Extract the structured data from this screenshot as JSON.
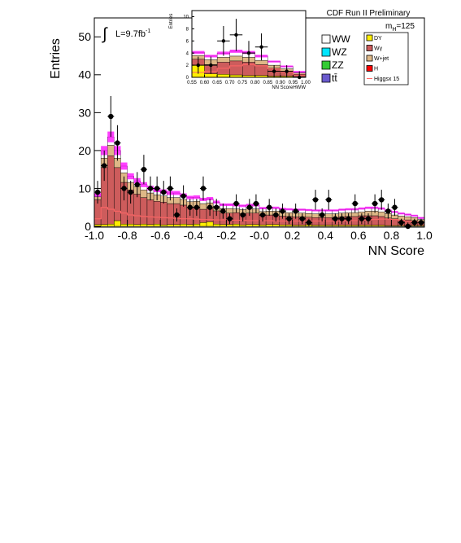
{
  "header": {
    "experiment": "CDF Run II Preliminary",
    "mass_label": "m",
    "mass_sub": "H",
    "mass_value": "=125",
    "lumi_prefix": "L=9.7fb",
    "lumi_sup": "-1"
  },
  "legend": {
    "left": [
      {
        "label": "WW",
        "color": "#ffffff"
      },
      {
        "label": "WZ",
        "color": "#00e5ff"
      },
      {
        "label": "ZZ",
        "color": "#33cc33"
      },
      {
        "label": "tt̄",
        "color": "#6a5acd"
      }
    ],
    "right": [
      {
        "label": "DY",
        "color": "#ffee00"
      },
      {
        "label": "Wγ",
        "color": "#cd5c5c"
      },
      {
        "label": "W+jet",
        "color": "#deb887"
      },
      {
        "label": "H",
        "color": "#ff0000"
      },
      {
        "label": "Higgsx 15",
        "color": "#ff6666"
      }
    ]
  },
  "chart_data": [
    {
      "type": "bar",
      "stacked": true,
      "xlabel": "NN Score",
      "ylabel": "Entries",
      "xlim": [
        -1.0,
        1.0
      ],
      "ylim": [
        0,
        55
      ],
      "xticks": [
        "-1.0",
        "-0.8",
        "-0.6",
        "-0.4",
        "-0.2",
        "-0.0",
        "0.2",
        "0.4",
        "0.6",
        "0.8",
        "1.0"
      ],
      "yticks": [
        "0",
        "10",
        "20",
        "30",
        "40",
        "50"
      ],
      "x_bins": [
        -0.98,
        -0.94,
        -0.9,
        -0.86,
        -0.82,
        -0.78,
        -0.74,
        -0.7,
        -0.66,
        -0.62,
        -0.58,
        -0.54,
        -0.5,
        -0.46,
        -0.42,
        -0.38,
        -0.34,
        -0.3,
        -0.26,
        -0.22,
        -0.18,
        -0.14,
        -0.1,
        -0.06,
        -0.02,
        0.02,
        0.06,
        0.1,
        0.14,
        0.18,
        0.22,
        0.26,
        0.3,
        0.34,
        0.38,
        0.42,
        0.46,
        0.5,
        0.54,
        0.58,
        0.62,
        0.66,
        0.7,
        0.74,
        0.78,
        0.82,
        0.86,
        0.9,
        0.94,
        0.98
      ],
      "series": [
        {
          "name": "DY",
          "color": "#ffee00",
          "values": [
            0.5,
            0.5,
            0.6,
            1.5,
            0.6,
            0.6,
            0.5,
            0.6,
            0.5,
            0.6,
            0.4,
            0.5,
            0.5,
            0.6,
            0.5,
            0.6,
            1.0,
            1.2,
            0.6,
            0.5,
            0.5,
            0.6,
            0.4,
            0.5,
            0.5,
            0.4,
            0.5,
            0.5,
            0.4,
            0.4,
            0.3,
            0.3,
            0.4,
            0.3,
            0.3,
            0.3,
            0.3,
            0.3,
            0.3,
            0.3,
            0.3,
            0.3,
            0.3,
            0.3,
            0.2,
            0.2,
            0.2,
            0.2,
            0.2,
            0.2
          ]
        },
        {
          "name": "Wγ",
          "color": "#cd5c5c",
          "values": [
            6.5,
            15,
            18,
            14,
            11,
            9,
            8,
            7,
            6.5,
            6,
            6,
            5.5,
            5.5,
            5,
            4.5,
            4.5,
            3.5,
            3.5,
            3.5,
            3,
            3,
            3,
            3,
            3,
            3,
            2.5,
            2.5,
            2.5,
            2.3,
            2.2,
            2.2,
            2.2,
            2,
            2,
            2,
            2,
            2,
            2.2,
            2.3,
            2.3,
            2.5,
            2.5,
            2.5,
            2.3,
            2,
            1.8,
            1.5,
            1.5,
            1.3,
            1
          ]
        },
        {
          "name": "W+jet",
          "color": "#deb887",
          "values": [
            0.8,
            2.5,
            2.8,
            2.5,
            2.5,
            2,
            2,
            2,
            1.8,
            1.7,
            1.6,
            1.6,
            1.6,
            1.5,
            1.5,
            1.5,
            1.5,
            1.5,
            1.2,
            1.2,
            1.2,
            1,
            1,
            1.1,
            1.1,
            1,
            1,
            1,
            1,
            1,
            1,
            1,
            1,
            1,
            1,
            1,
            1,
            1,
            1,
            1,
            1,
            1.2,
            1.2,
            1.2,
            1.2,
            1,
            1,
            0.8,
            0.8,
            0.6
          ]
        },
        {
          "name": "WW",
          "color": "#ffffff",
          "values": [
            0.5,
            2,
            2.2,
            2,
            1.8,
            1.6,
            1.5,
            1.4,
            1.3,
            1.3,
            1.2,
            1.2,
            1.2,
            1.1,
            1.1,
            1.1,
            1.1,
            1.1,
            1.1,
            1,
            1,
            1,
            1,
            1,
            1,
            0.9,
            0.9,
            0.9,
            0.9,
            0.9,
            0.9,
            0.9,
            0.9,
            0.9,
            0.9,
            0.9,
            0.9,
            0.9,
            0.9,
            0.9,
            0.9,
            0.9,
            0.9,
            0.9,
            0.8,
            0.8,
            0.7,
            0.6,
            0.5,
            0.4
          ]
        }
      ],
      "signal": {
        "name": "Higgsx 15",
        "color": "#ff6666",
        "values": [
          2,
          5,
          4.5,
          4,
          3.5,
          3,
          2.8,
          2.6,
          2.5,
          2.4,
          2.3,
          2.2,
          2.1,
          2,
          2,
          1.9,
          1.8,
          1.8,
          1.7,
          1.7,
          1.6,
          1.6,
          1.6,
          1.5,
          1.5,
          1.5,
          1.5,
          1.4,
          1.4,
          1.4,
          1.4,
          1.4,
          1.4,
          1.4,
          1.4,
          1.4,
          1.4,
          1.4,
          1.5,
          1.5,
          1.6,
          1.7,
          1.8,
          1.9,
          1.9,
          1.8,
          1.6,
          1.4,
          1.2,
          1
        ]
      },
      "data_points": {
        "x": [
          -0.98,
          -0.94,
          -0.9,
          -0.86,
          -0.82,
          -0.78,
          -0.74,
          -0.7,
          -0.66,
          -0.62,
          -0.58,
          -0.54,
          -0.5,
          -0.46,
          -0.42,
          -0.38,
          -0.34,
          -0.3,
          -0.26,
          -0.22,
          -0.18,
          -0.14,
          -0.1,
          -0.06,
          -0.02,
          0.02,
          0.06,
          0.1,
          0.14,
          0.18,
          0.22,
          0.26,
          0.3,
          0.34,
          0.38,
          0.42,
          0.46,
          0.5,
          0.54,
          0.58,
          0.62,
          0.66,
          0.7,
          0.74,
          0.78,
          0.82,
          0.86,
          0.9,
          0.94,
          0.98
        ],
        "y": [
          9,
          16,
          29,
          22,
          10,
          9,
          11,
          15,
          10,
          10,
          9,
          10,
          3,
          8,
          5,
          5,
          10,
          5,
          5,
          4,
          2,
          6,
          3,
          5,
          6,
          3,
          5,
          3,
          4,
          2,
          4,
          2,
          1,
          7,
          3,
          7,
          2,
          2,
          2,
          6,
          2,
          2,
          6,
          7,
          4,
          5,
          1,
          0,
          1,
          1
        ]
      }
    },
    {
      "type": "bar",
      "stacked": true,
      "title": "",
      "xlabel": "NN ScoreHWW",
      "ylabel": "Entries",
      "xlim": [
        0.55,
        1.0
      ],
      "ylim": [
        0,
        11
      ],
      "xticks": [
        "0.55",
        "0.60",
        "0.65",
        "0.70",
        "0.75",
        "0.80",
        "0.85",
        "0.90",
        "0.95",
        "1.00"
      ],
      "yticks": [
        "0",
        "2",
        "4",
        "6",
        "8",
        "10"
      ],
      "x_bins": [
        0.575,
        0.625,
        0.675,
        0.725,
        0.775,
        0.825,
        0.875,
        0.925,
        0.975
      ],
      "series": [
        {
          "name": "DY",
          "color": "#ffee00",
          "values": [
            2,
            0.6,
            0.5,
            0.4,
            0.3,
            0.3,
            0.2,
            0.2,
            0.1
          ]
        },
        {
          "name": "Wγ",
          "color": "#cd5c5c",
          "values": [
            1,
            1.5,
            2,
            2.3,
            2.2,
            1.8,
            1.3,
            0.8,
            0.4
          ]
        },
        {
          "name": "W+jet",
          "color": "#deb887",
          "values": [
            0.6,
            0.8,
            0.8,
            0.8,
            0.8,
            0.7,
            0.5,
            0.4,
            0.2
          ]
        },
        {
          "name": "WW",
          "color": "#ffffff",
          "values": [
            0.5,
            0.6,
            0.7,
            0.8,
            0.8,
            0.7,
            0.6,
            0.4,
            0.2
          ]
        }
      ],
      "signal": {
        "name": "Higgsx 15",
        "color": "#ff6666",
        "values": [
          0.8,
          1,
          1.5,
          1.9,
          2.1,
          1.9,
          1.4,
          0.9,
          0.4
        ]
      },
      "data_points": {
        "x": [
          0.575,
          0.625,
          0.675,
          0.725,
          0.775,
          0.825,
          0.875,
          0.925,
          0.975
        ],
        "y": [
          2,
          2,
          6,
          7,
          4,
          5,
          1,
          1,
          0
        ]
      }
    }
  ]
}
